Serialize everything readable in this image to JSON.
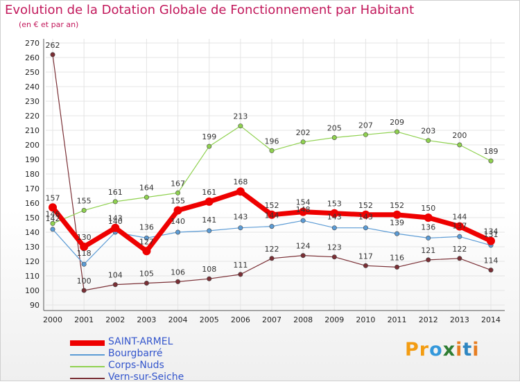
{
  "header": {
    "title": "Evolution de la Dotation Globale de Fonctionnement par Habitant",
    "subtitle": "(en € et par an)"
  },
  "brand": {
    "text": "Proxiti",
    "letters": [
      "P",
      "r",
      "o",
      "x",
      "i",
      "t",
      "i"
    ],
    "colors": [
      "#f39c12",
      "#f39c12",
      "#3498db",
      "#2e7d32",
      "#e67e22",
      "#2e86c1",
      "#e67e22"
    ]
  },
  "chart_data": {
    "type": "line",
    "title": "Evolution de la Dotation Globale de Fonctionnement par Habitant",
    "subtitle": "(en € et par an)",
    "categories": [
      "2000",
      "2001",
      "2002",
      "2003",
      "2004",
      "2005",
      "2006",
      "2007",
      "2008",
      "2009",
      "2010",
      "2011",
      "2012",
      "2013",
      "2014"
    ],
    "ylim": [
      90,
      270
    ],
    "yticks": [
      90,
      100,
      110,
      120,
      130,
      140,
      150,
      160,
      170,
      180,
      190,
      200,
      210,
      220,
      230,
      240,
      250,
      260,
      270
    ],
    "grid": true,
    "legend_position": "bottom-left",
    "series": [
      {
        "name": "SAINT-ARMEL",
        "color": "#ee0000",
        "width": 7,
        "values": [
          157,
          130,
          143,
          127,
          155,
          161,
          168,
          152,
          154,
          153,
          152,
          152,
          150,
          144,
          134
        ],
        "labels": [
          "157",
          "130",
          "143",
          "127",
          "155",
          "161",
          "168",
          "152",
          "154",
          "153",
          "152",
          "152",
          "150",
          "144",
          "134"
        ]
      },
      {
        "name": "Bourgbarré",
        "color": "#5b9bd5",
        "width": 1.2,
        "values": [
          142,
          118,
          140,
          136,
          140,
          141,
          143,
          144,
          148,
          143,
          143,
          139,
          136,
          137,
          131
        ],
        "labels": [
          "142",
          "118",
          "140",
          "136",
          "140",
          "141",
          "143",
          "144",
          "148",
          "143",
          "143",
          "139",
          "136",
          "137",
          "131"
        ]
      },
      {
        "name": "Corps-Nuds",
        "color": "#8fd14f",
        "width": 1.2,
        "values": [
          146,
          155,
          161,
          164,
          167,
          199,
          213,
          196,
          202,
          205,
          207,
          209,
          203,
          200,
          189
        ],
        "labels": [
          "146",
          "155",
          "161",
          "164",
          "167",
          "199",
          "213",
          "196",
          "202",
          "205",
          "207",
          "209",
          "203",
          "200",
          "189"
        ]
      },
      {
        "name": "Vern-sur-Seiche",
        "color": "#7a2f35",
        "width": 1.2,
        "values": [
          262,
          100,
          104,
          105,
          106,
          108,
          111,
          122,
          124,
          123,
          117,
          116,
          121,
          122,
          114
        ],
        "labels": [
          "262",
          "100",
          "104",
          "105",
          "106",
          "108",
          "111",
          "122",
          "124",
          "123",
          "117",
          "116",
          "121",
          "122",
          "114"
        ]
      }
    ]
  }
}
